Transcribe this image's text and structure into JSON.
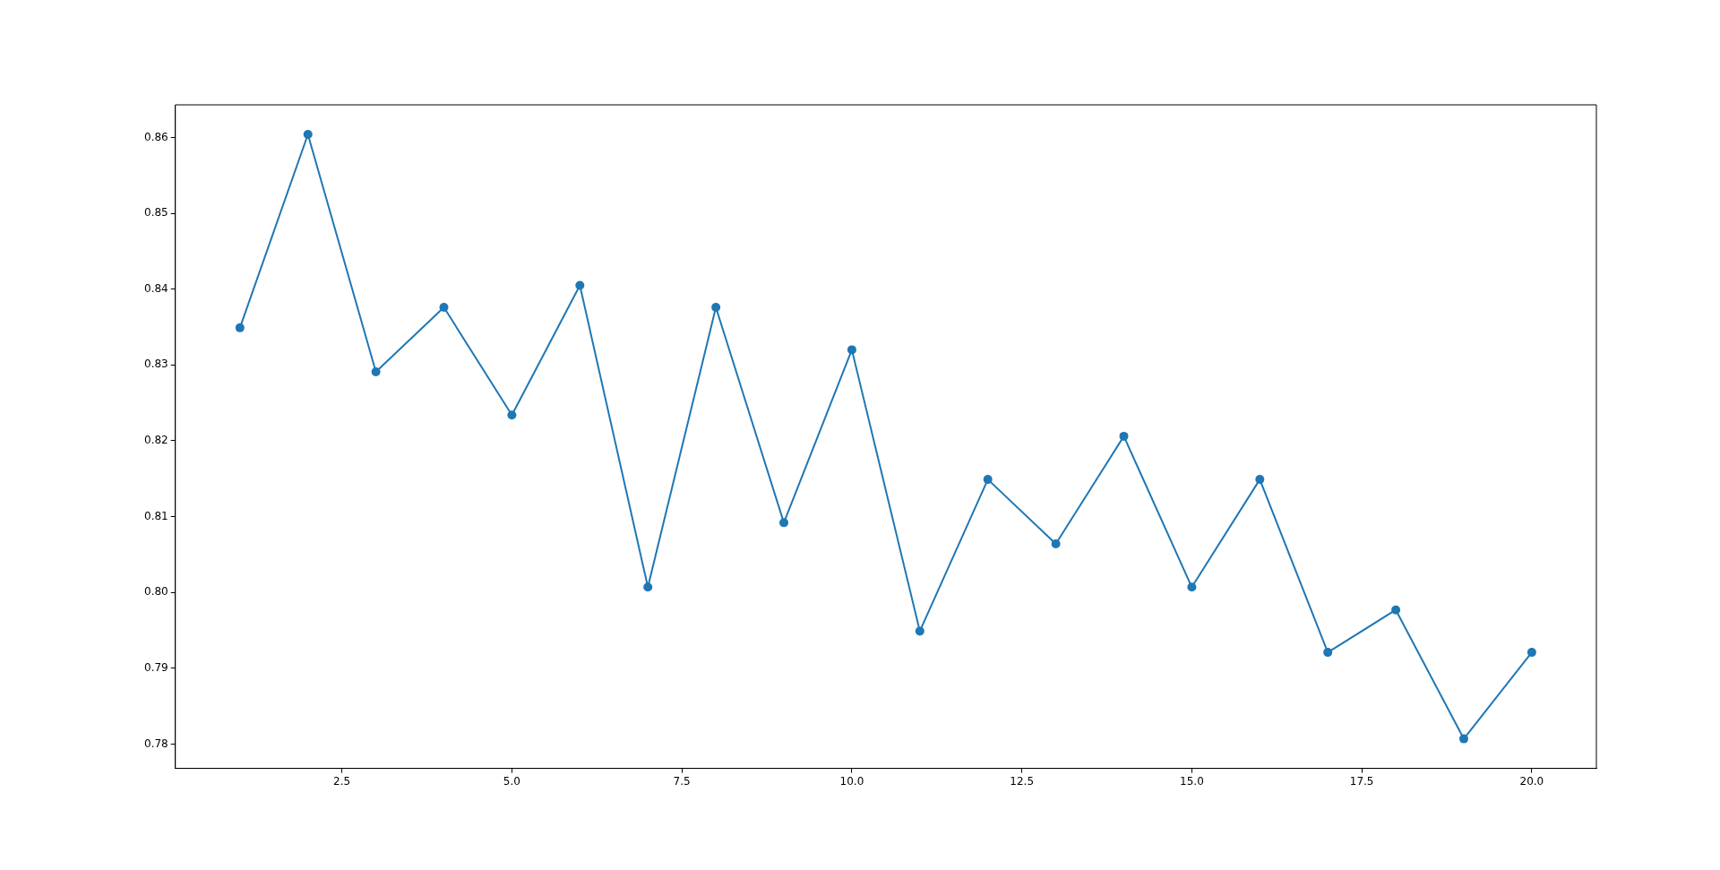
{
  "chart_data": {
    "type": "line",
    "x": [
      1,
      2,
      3,
      4,
      5,
      6,
      7,
      8,
      9,
      10,
      11,
      12,
      13,
      14,
      15,
      16,
      17,
      18,
      19,
      20
    ],
    "series": [
      {
        "color": "#1f77b4",
        "values": [
          0.8349,
          0.8604,
          0.8291,
          0.8376,
          0.8234,
          0.8405,
          0.8007,
          0.8376,
          0.8092,
          0.832,
          0.7949,
          0.8149,
          0.8064,
          0.8206,
          0.8007,
          0.8149,
          0.7921,
          0.7977,
          0.7807,
          0.7921
        ]
      }
    ],
    "xlim": [
      0.05,
      20.95
    ],
    "xticks": [
      {
        "value": 2.5,
        "label": "2.5"
      },
      {
        "value": 5,
        "label": "5.0"
      },
      {
        "value": 7.5,
        "label": "7.5"
      },
      {
        "value": 10,
        "label": "10.0"
      },
      {
        "value": 12.5,
        "label": "12.5"
      },
      {
        "value": 15,
        "label": "15.0"
      },
      {
        "value": 17.5,
        "label": "17.5"
      },
      {
        "value": 20,
        "label": "20.0"
      }
    ],
    "ylim": [
      0.7768,
      0.8643
    ],
    "yticks": [
      {
        "value": 0.78,
        "label": "0.78"
      },
      {
        "value": 0.79,
        "label": "0.79"
      },
      {
        "value": 0.8,
        "label": "0.80"
      },
      {
        "value": 0.81,
        "label": "0.81"
      },
      {
        "value": 0.82,
        "label": "0.82"
      },
      {
        "value": 0.83,
        "label": "0.83"
      },
      {
        "value": 0.84,
        "label": "0.84"
      },
      {
        "value": 0.85,
        "label": "0.85"
      },
      {
        "value": 0.86,
        "label": "0.86"
      }
    ],
    "marker": "circle",
    "line_style": "solid",
    "legend": false,
    "grid": false
  }
}
